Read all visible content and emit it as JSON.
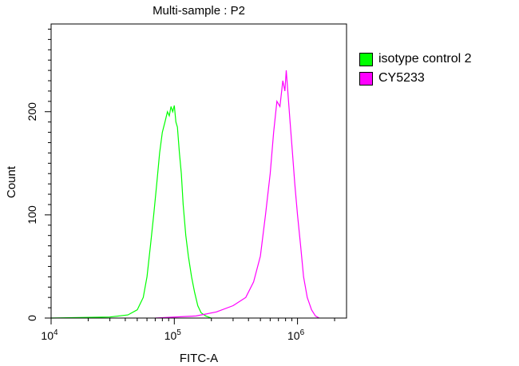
{
  "chart_data": {
    "type": "area",
    "title": "Multi-sample : P2",
    "xlabel": "FITC-A",
    "ylabel": "Count",
    "x_scale": "log",
    "xlim": [
      10000,
      2500000
    ],
    "ylim": [
      0,
      285
    ],
    "x_ticks": [
      {
        "value": 10000,
        "base": "10",
        "exp": "4"
      },
      {
        "value": 100000,
        "base": "10",
        "exp": "5"
      },
      {
        "value": 1000000,
        "base": "10",
        "exp": "6"
      }
    ],
    "y_ticks": [
      0,
      100,
      200
    ],
    "grid": false,
    "legend_position": "right",
    "series": [
      {
        "name": "isotype control 2",
        "color": "#00ff00",
        "x": [
          10000,
          30000,
          42000,
          50000,
          56000,
          60000,
          64000,
          68000,
          72000,
          76000,
          80000,
          84000,
          88000,
          91000,
          94000,
          97000,
          100000,
          103000,
          106000,
          110000,
          114000,
          118000,
          124000,
          130000,
          138000,
          146000,
          155000,
          165000,
          180000,
          200000
        ],
        "y": [
          0,
          1,
          3,
          8,
          20,
          40,
          70,
          100,
          130,
          160,
          180,
          190,
          200,
          196,
          205,
          200,
          206,
          190,
          185,
          160,
          140,
          110,
          80,
          60,
          40,
          25,
          12,
          5,
          2,
          0
        ]
      },
      {
        "name": "CY5233",
        "color": "#ff00ff",
        "x": [
          70000,
          150000,
          220000,
          300000,
          380000,
          440000,
          500000,
          550000,
          600000,
          640000,
          680000,
          720000,
          760000,
          790000,
          810000,
          840000,
          870000,
          910000,
          950000,
          1000000,
          1060000,
          1120000,
          1200000,
          1300000,
          1400000,
          1500000
        ],
        "y": [
          0,
          2,
          6,
          12,
          20,
          35,
          60,
          100,
          140,
          180,
          210,
          205,
          230,
          220,
          240,
          215,
          190,
          160,
          130,
          100,
          70,
          40,
          20,
          8,
          2,
          0
        ]
      }
    ]
  }
}
